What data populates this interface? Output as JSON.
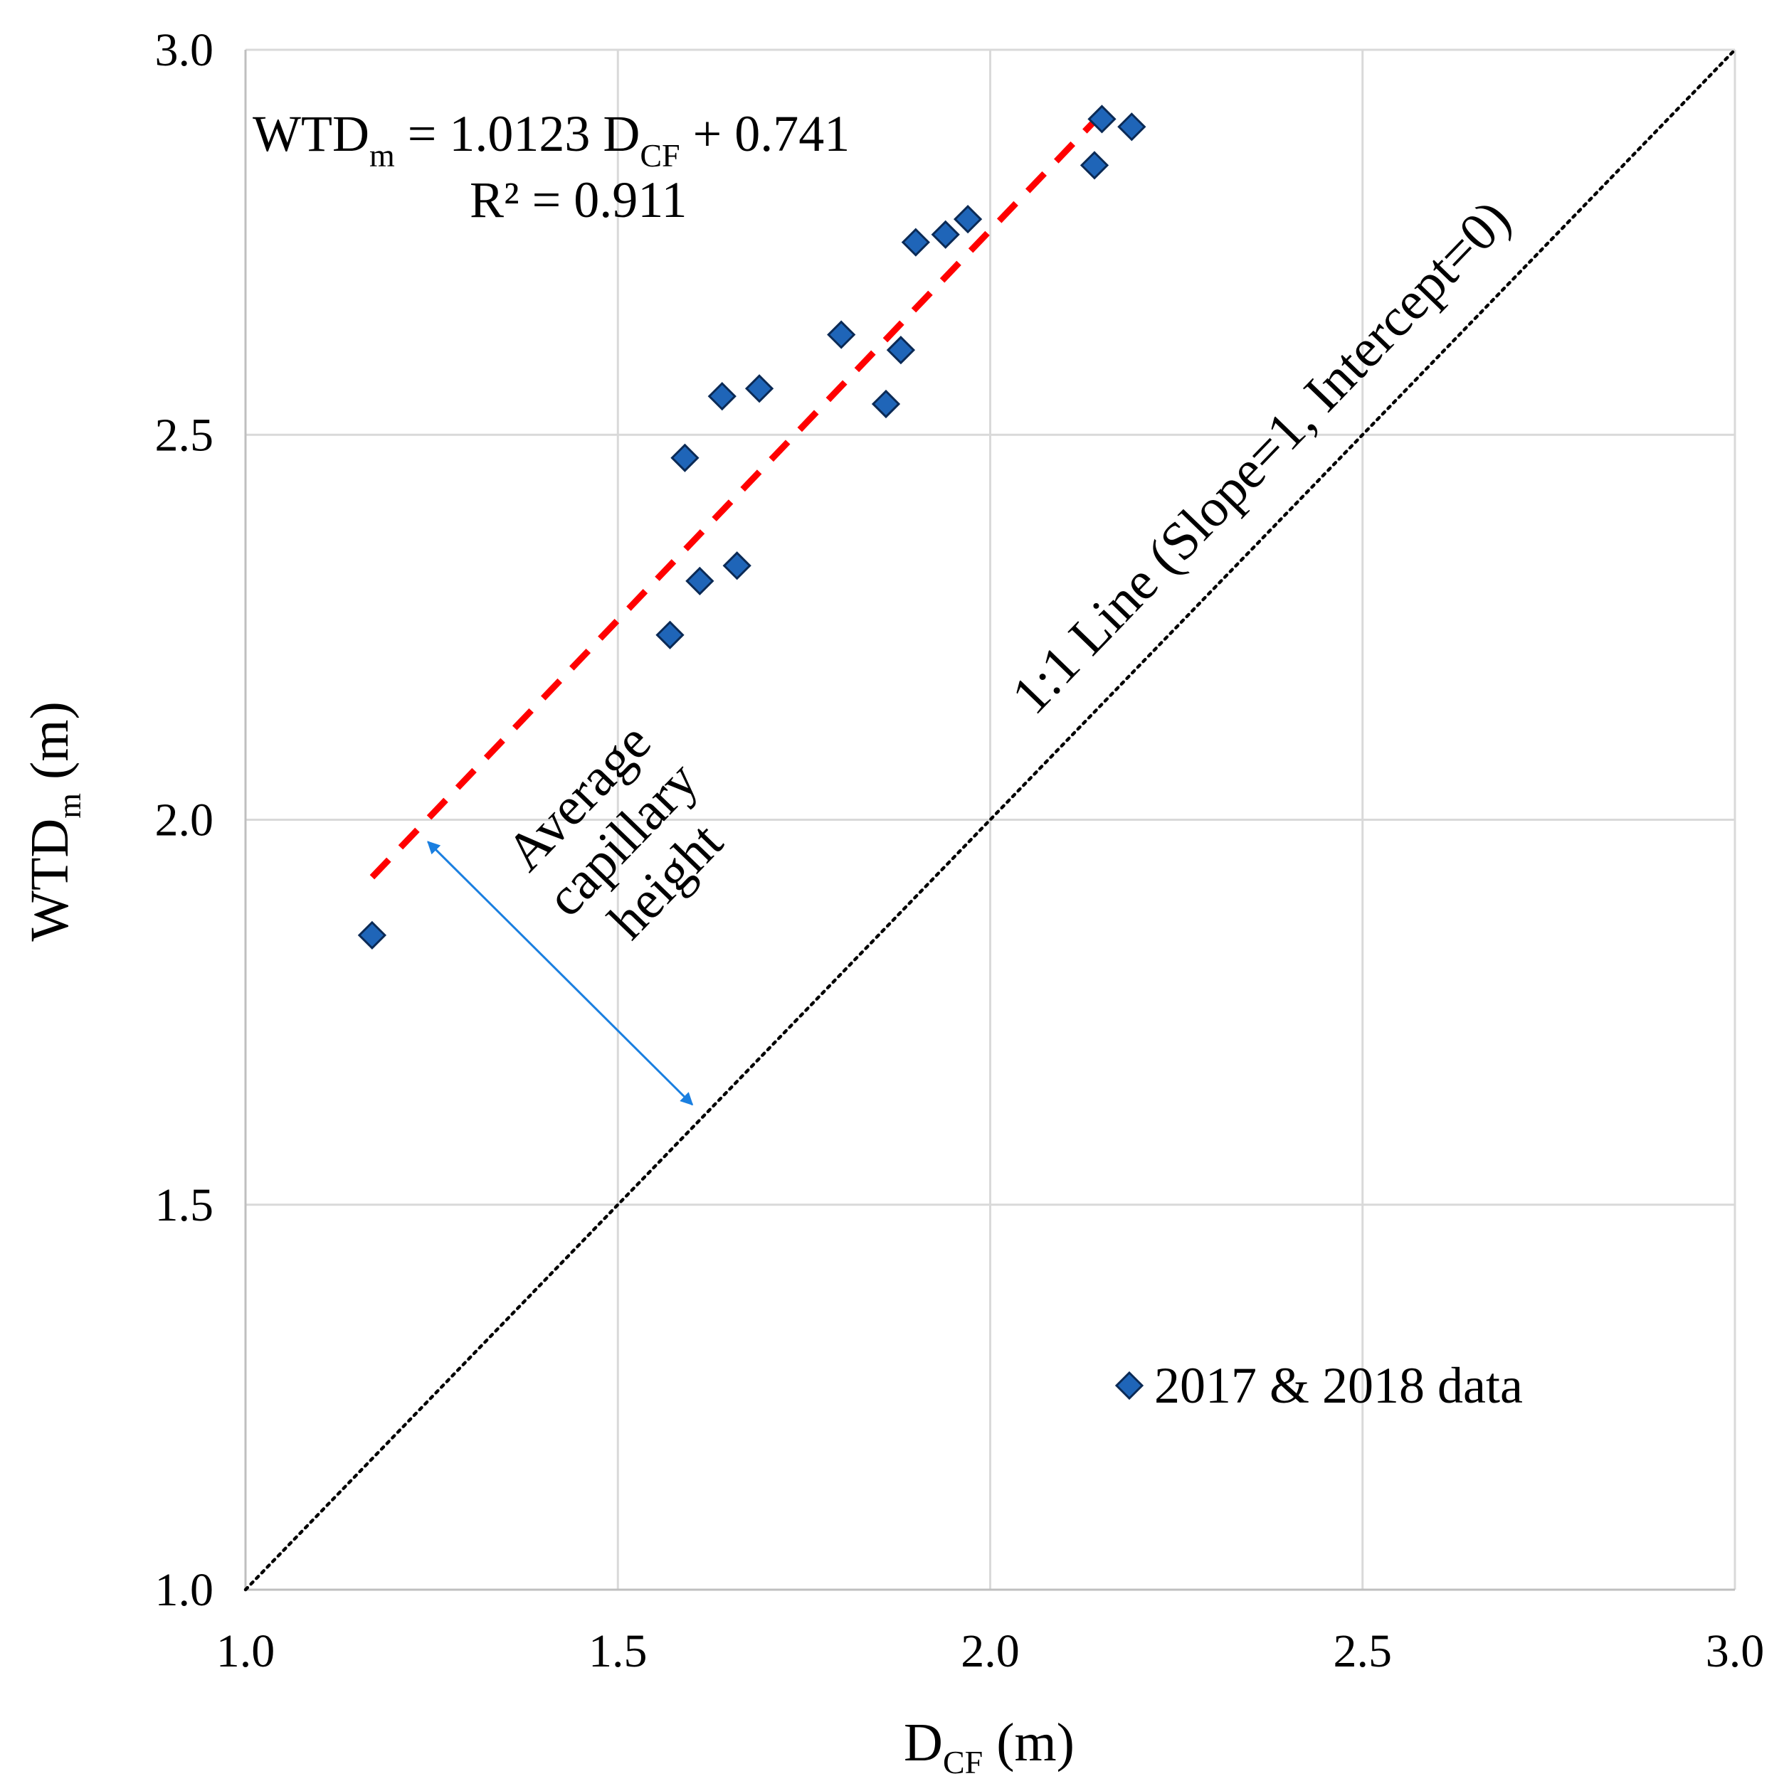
{
  "chart_data": {
    "type": "scatter",
    "title": "",
    "xlabel": {
      "main": "D",
      "sub": "CF",
      "unit": " (m)"
    },
    "ylabel": {
      "main": "WTD",
      "sub": "m",
      "unit": " (m)"
    },
    "xlim": [
      1.0,
      3.0
    ],
    "ylim": [
      1.0,
      3.0
    ],
    "x_ticks": [
      "1.0",
      "1.5",
      "2.0",
      "2.5",
      "3.0"
    ],
    "y_ticks": [
      "1.0",
      "1.5",
      "2.0",
      "2.5",
      "3.0"
    ],
    "x_tick_values": [
      1.0,
      1.5,
      2.0,
      2.5,
      3.0
    ],
    "y_tick_values": [
      1.0,
      1.5,
      2.0,
      2.5,
      3.0
    ],
    "grid": true,
    "series": [
      {
        "name": "2017 & 2018 data",
        "marker": "diamond",
        "color": "#1f65b8",
        "points": [
          [
            1.17,
            1.85
          ],
          [
            1.57,
            2.24
          ],
          [
            1.59,
            2.47
          ],
          [
            1.61,
            2.31
          ],
          [
            1.64,
            2.55
          ],
          [
            1.66,
            2.33
          ],
          [
            1.69,
            2.56
          ],
          [
            1.8,
            2.63
          ],
          [
            1.86,
            2.54
          ],
          [
            1.88,
            2.61
          ],
          [
            1.9,
            2.75
          ],
          [
            1.94,
            2.76
          ],
          [
            1.97,
            2.78
          ],
          [
            2.14,
            2.85
          ],
          [
            2.15,
            2.91
          ],
          [
            2.19,
            2.9
          ]
        ]
      }
    ],
    "trendline": {
      "slope": 1.0123,
      "intercept": 0.741,
      "x_range": [
        1.17,
        2.16
      ],
      "color": "#ff0000",
      "style": "dashed",
      "equation": {
        "prefix": "WTD",
        "prefix_sub": "m",
        "middle": " = 1.0123 D",
        "middle_sub": "CF",
        "suffix": " + 0.741"
      },
      "r2_label": "R² = 0.911"
    },
    "reference_line": {
      "slope": 1,
      "intercept": 0,
      "style": "dotted",
      "label": "1:1 Line (Slope=1, Intercept=0)"
    },
    "capillary_arrow": {
      "color": "#1a7fe0",
      "label": [
        "Average",
        "capillary",
        "height"
      ]
    },
    "legend": {
      "position": "bottom-right",
      "label": "2017 & 2018 data"
    }
  }
}
